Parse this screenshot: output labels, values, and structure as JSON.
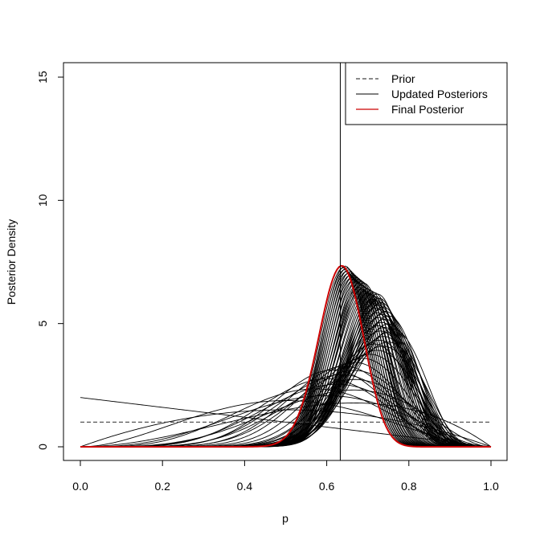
{
  "chart_data": {
    "type": "line",
    "title": "",
    "xlabel": "p",
    "ylabel": "Posterior Density",
    "xlim": [
      0,
      1
    ],
    "ylim": [
      0,
      15
    ],
    "x_ticks": [
      "0.0",
      "0.2",
      "0.4",
      "0.6",
      "0.8",
      "1.0"
    ],
    "y_ticks": [
      "0",
      "5",
      "10",
      "15"
    ],
    "grid": false,
    "legend_position": "top-right",
    "reference_line_x": 0.633,
    "legend": [
      {
        "label": "Prior",
        "style": "dashed",
        "color": "#444444"
      },
      {
        "label": "Updated Posteriors",
        "style": "solid",
        "color": "#000000"
      },
      {
        "label": "Final Posterior",
        "style": "solid",
        "color": "#cc0000"
      }
    ],
    "series": [
      {
        "name": "Prior",
        "kind": "beta",
        "a": 1,
        "b": 1,
        "color": "#444444",
        "dash": true
      },
      {
        "name": "Updated Posteriors",
        "kind": "beta_family",
        "color": "#000000",
        "params": [
          [
            1,
            2
          ],
          [
            2,
            2
          ],
          [
            3,
            2
          ],
          [
            3,
            3
          ],
          [
            4,
            3
          ],
          [
            5,
            3
          ],
          [
            5,
            4
          ],
          [
            6,
            4
          ],
          [
            7,
            4
          ],
          [
            7,
            5
          ],
          [
            8,
            5
          ],
          [
            9,
            5
          ],
          [
            9,
            6
          ],
          [
            10,
            6
          ],
          [
            11,
            6
          ],
          [
            12,
            6
          ],
          [
            13,
            6
          ],
          [
            14,
            6
          ],
          [
            15,
            6
          ],
          [
            16,
            6
          ],
          [
            16,
            7
          ],
          [
            17,
            7
          ],
          [
            18,
            7
          ],
          [
            19,
            7
          ],
          [
            20,
            7
          ],
          [
            20,
            8
          ],
          [
            21,
            8
          ],
          [
            22,
            8
          ],
          [
            22,
            9
          ],
          [
            23,
            9
          ],
          [
            24,
            9
          ],
          [
            25,
            9
          ],
          [
            25,
            10
          ],
          [
            26,
            10
          ],
          [
            27,
            10
          ],
          [
            27,
            11
          ],
          [
            28,
            11
          ],
          [
            29,
            11
          ],
          [
            29,
            12
          ],
          [
            30,
            12
          ],
          [
            31,
            12
          ],
          [
            31,
            13
          ],
          [
            32,
            13
          ],
          [
            33,
            13
          ],
          [
            33,
            14
          ],
          [
            34,
            14
          ],
          [
            35,
            14
          ],
          [
            35,
            15
          ],
          [
            36,
            15
          ],
          [
            36,
            16
          ],
          [
            37,
            16
          ],
          [
            37,
            17
          ],
          [
            38,
            17
          ],
          [
            38,
            18
          ],
          [
            39,
            18
          ],
          [
            39,
            19
          ],
          [
            40,
            19
          ],
          [
            41,
            19
          ],
          [
            41,
            20
          ],
          [
            42,
            20
          ],
          [
            42,
            21
          ],
          [
            43,
            21
          ],
          [
            43,
            22
          ],
          [
            44,
            22
          ],
          [
            44,
            23
          ],
          [
            45,
            23
          ],
          [
            45,
            24
          ],
          [
            46,
            24
          ],
          [
            46,
            25
          ],
          [
            47,
            25
          ],
          [
            47,
            26
          ],
          [
            48,
            26
          ],
          [
            48,
            27
          ],
          [
            49,
            27
          ],
          [
            49,
            28
          ],
          [
            50,
            28
          ],
          [
            50,
            29
          ]
        ]
      },
      {
        "name": "Final Posterior",
        "kind": "beta",
        "a": 50,
        "b": 29,
        "color": "#cc0000",
        "dash": false
      }
    ]
  }
}
